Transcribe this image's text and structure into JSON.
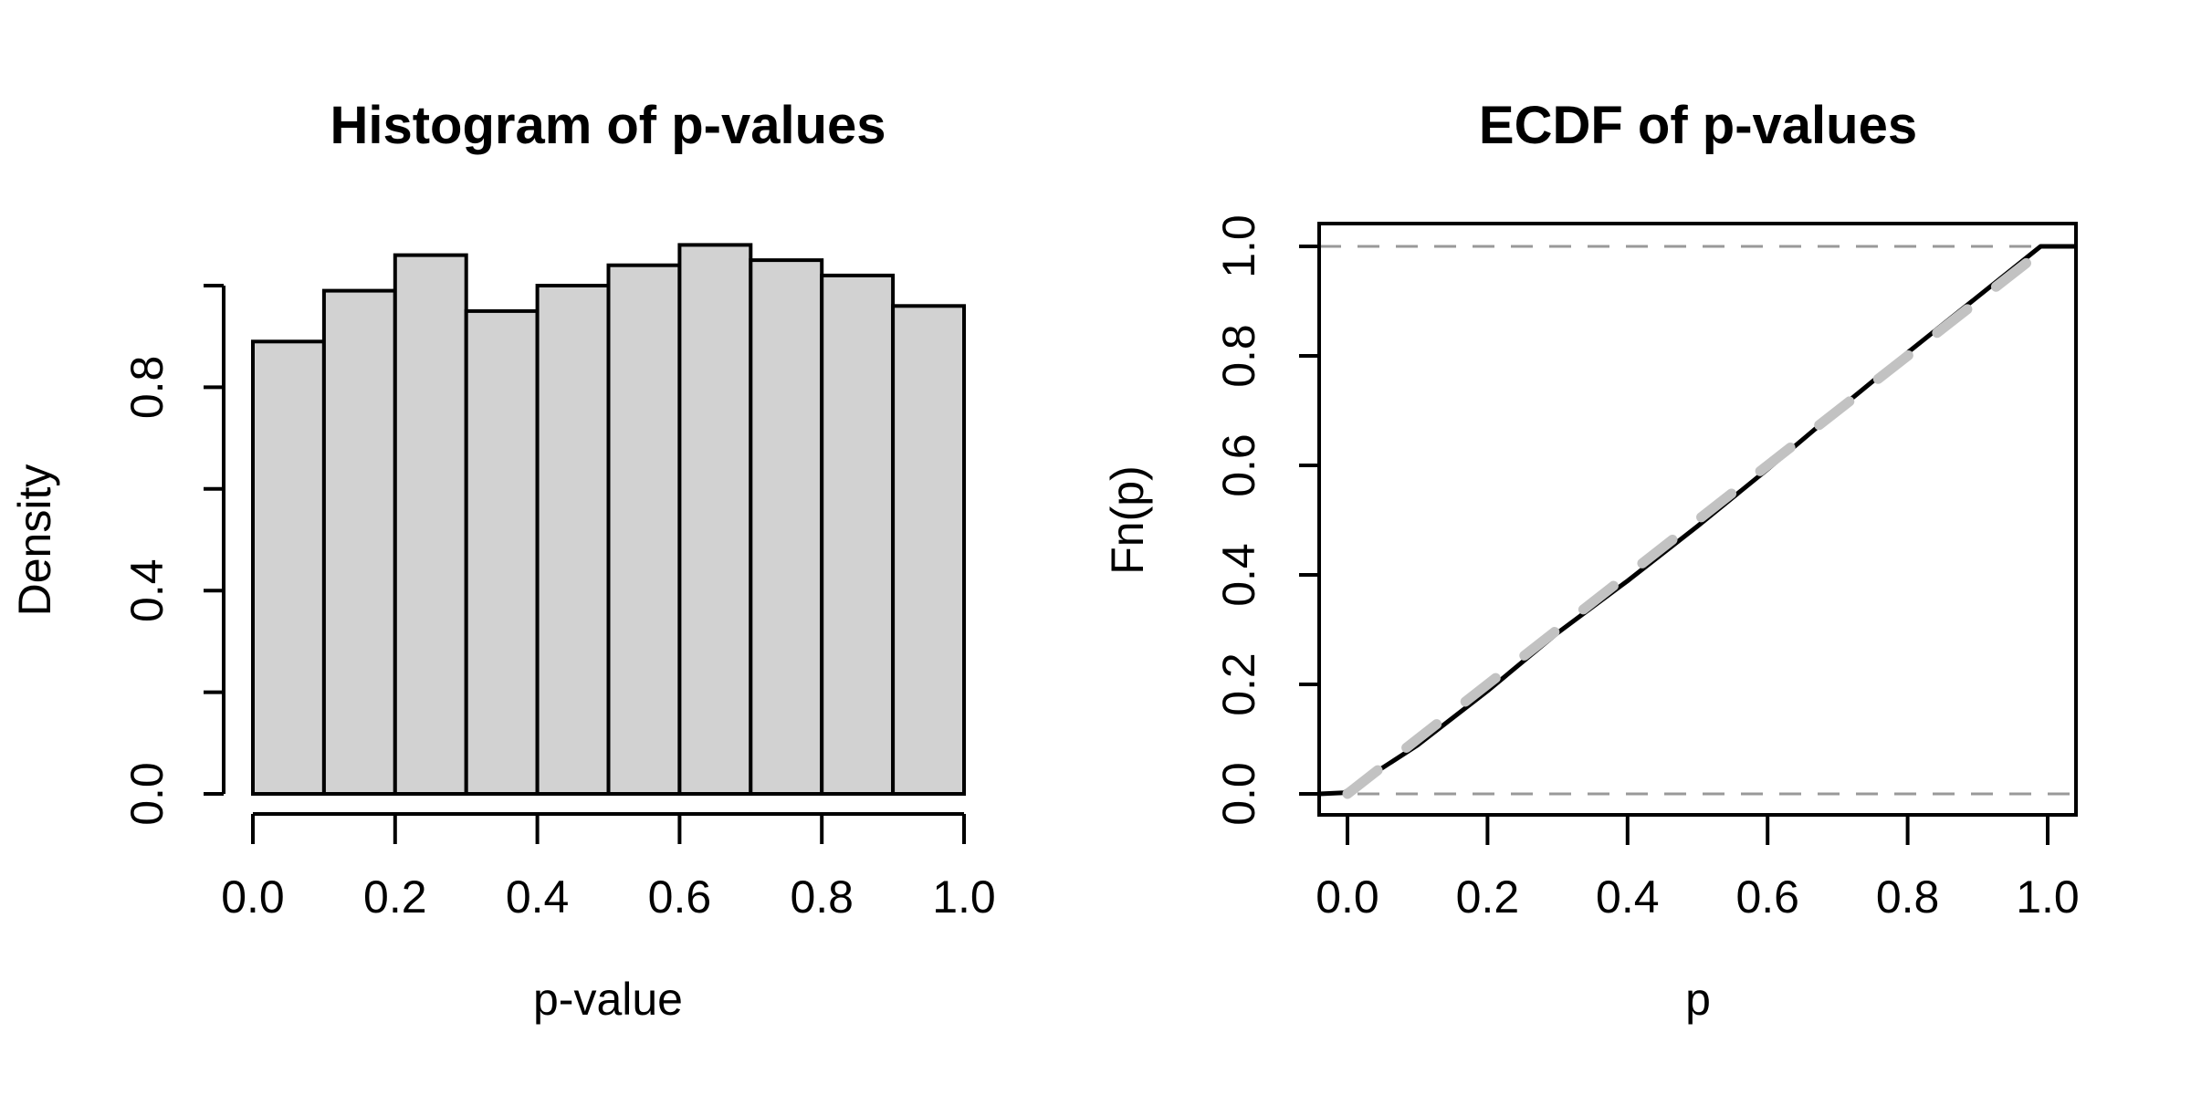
{
  "figure": {
    "background": "#ffffff",
    "panel_count": 2
  },
  "chart_data": [
    {
      "type": "bar",
      "title": "Histogram of p-values",
      "xlabel": "p-value",
      "ylabel": "Density",
      "categories": [
        "0.0-0.1",
        "0.1-0.2",
        "0.2-0.3",
        "0.3-0.4",
        "0.4-0.5",
        "0.5-0.6",
        "0.6-0.7",
        "0.7-0.8",
        "0.8-0.9",
        "0.9-1.0"
      ],
      "values": [
        0.89,
        0.99,
        1.06,
        0.95,
        1.0,
        1.04,
        1.08,
        1.05,
        1.02,
        0.96
      ],
      "bin_start": 0.0,
      "bin_width": 0.1,
      "xlim": [
        0.0,
        1.0
      ],
      "ylim": [
        0.0,
        1.08
      ],
      "grid": false,
      "x_ticks": [
        {
          "value": 0.0,
          "label": "0.0"
        },
        {
          "value": 0.2,
          "label": "0.2"
        },
        {
          "value": 0.4,
          "label": "0.4"
        },
        {
          "value": 0.6,
          "label": "0.6"
        },
        {
          "value": 0.8,
          "label": "0.8"
        },
        {
          "value": 1.0,
          "label": "1.0"
        }
      ],
      "y_ticks": [
        {
          "value": 0.0,
          "label": "0.0"
        },
        {
          "value": 0.2,
          "label": ""
        },
        {
          "value": 0.4,
          "label": "0.4"
        },
        {
          "value": 0.6,
          "label": ""
        },
        {
          "value": 0.8,
          "label": "0.8"
        },
        {
          "value": 1.0,
          "label": ""
        }
      ],
      "bar_fill": "#d2d2d2",
      "bar_stroke": "#000000"
    },
    {
      "type": "line",
      "title": "ECDF of p-values",
      "xlabel": "p",
      "ylabel": "Fn(p)",
      "xlim": [
        0.0,
        1.0
      ],
      "ylim": [
        0.0,
        1.0
      ],
      "grid": false,
      "frame": true,
      "x_ticks": [
        {
          "value": 0.0,
          "label": "0.0"
        },
        {
          "value": 0.2,
          "label": "0.2"
        },
        {
          "value": 0.4,
          "label": "0.4"
        },
        {
          "value": 0.6,
          "label": "0.6"
        },
        {
          "value": 0.8,
          "label": "0.8"
        },
        {
          "value": 1.0,
          "label": "1.0"
        }
      ],
      "y_ticks": [
        {
          "value": 0.0,
          "label": "0.0"
        },
        {
          "value": 0.2,
          "label": "0.2"
        },
        {
          "value": 0.4,
          "label": "0.4"
        },
        {
          "value": 0.6,
          "label": "0.6"
        },
        {
          "value": 0.8,
          "label": "0.8"
        },
        {
          "value": 1.0,
          "label": "1.0"
        }
      ],
      "series": [
        {
          "name": "ecdf-curve",
          "color": "#000000",
          "width": 5,
          "dash": "solid",
          "x": [
            -0.04,
            -0.005,
            0.1,
            0.2,
            0.3,
            0.4,
            0.5,
            0.6,
            0.7,
            0.8,
            0.9,
            0.99,
            1.045
          ],
          "y": [
            0.0,
            0.002,
            0.089,
            0.188,
            0.294,
            0.389,
            0.489,
            0.593,
            0.701,
            0.806,
            0.908,
            1.0,
            1.0
          ]
        },
        {
          "name": "uniform-reference-diagonal",
          "color": "#c2c2c2",
          "width": 11,
          "dash": "dashed-thick",
          "x": [
            0.0,
            1.0
          ],
          "y": [
            0.0,
            1.0
          ]
        }
      ],
      "reference_hlines": [
        {
          "y": 0.0,
          "color": "#999999",
          "dash": "dashed-thin"
        },
        {
          "y": 1.0,
          "color": "#999999",
          "dash": "dashed-thin"
        }
      ]
    }
  ]
}
